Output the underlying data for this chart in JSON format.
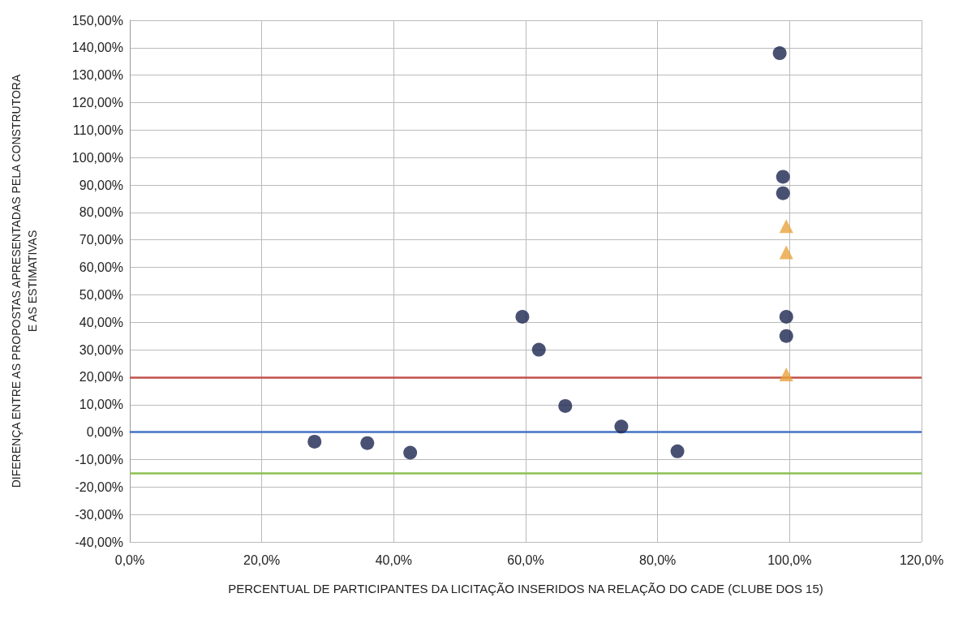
{
  "chart_data": {
    "type": "scatter",
    "xlabel": "PERCENTUAL DE PARTICIPANTES DA LICITAÇÃO INSERIDOS NA RELAÇÃO DO CADE (CLUBE DOS 15)",
    "ylabel": "DIFERENÇA ENTRE AS PROPOSTAS APRESENTADAS PELA CONSTRUTORA\nE AS ESTIMATIVAS",
    "xlim": [
      0,
      120
    ],
    "xticks": [
      {
        "value": 0,
        "label": "0,0%"
      },
      {
        "value": 20,
        "label": "20,0%"
      },
      {
        "value": 40,
        "label": "40,0%"
      },
      {
        "value": 60,
        "label": "60,0%"
      },
      {
        "value": 80,
        "label": "80,0%"
      },
      {
        "value": 100,
        "label": "100,0%"
      },
      {
        "value": 120,
        "label": "120,0%"
      }
    ],
    "ylim": [
      -40,
      150
    ],
    "yticks": [
      {
        "value": -40,
        "label": "-40,00%"
      },
      {
        "value": -30,
        "label": "-30,00%"
      },
      {
        "value": -20,
        "label": "-20,00%"
      },
      {
        "value": -10,
        "label": "-10,00%"
      },
      {
        "value": 0,
        "label": "0,00%"
      },
      {
        "value": 10,
        "label": "10,00%"
      },
      {
        "value": 20,
        "label": "20,00%"
      },
      {
        "value": 30,
        "label": "30,00%"
      },
      {
        "value": 40,
        "label": "40,00%"
      },
      {
        "value": 50,
        "label": "50,00%"
      },
      {
        "value": 60,
        "label": "60,00%"
      },
      {
        "value": 70,
        "label": "70,00%"
      },
      {
        "value": 80,
        "label": "80,00%"
      },
      {
        "value": 90,
        "label": "90,00%"
      },
      {
        "value": 100,
        "label": "100,00%"
      },
      {
        "value": 110,
        "label": "110,00%"
      },
      {
        "value": 120,
        "label": "120,00%"
      },
      {
        "value": 130,
        "label": "130,00%"
      },
      {
        "value": 140,
        "label": "140,00%"
      },
      {
        "value": 150,
        "label": "150,00%"
      }
    ],
    "grid": true,
    "series": [
      {
        "color": "#1c2550",
        "marker": "circle",
        "x": [
          28,
          36,
          42.5,
          59.5,
          62,
          66,
          74.5,
          83,
          98.5,
          99,
          99,
          99.5,
          99.5
        ],
        "values": [
          -3.5,
          -4,
          -7.5,
          42,
          30,
          9.5,
          2,
          -7,
          138,
          93,
          87,
          42,
          35
        ]
      },
      {
        "color": "#e8a33c",
        "marker": "triangle",
        "x": [
          99.5,
          99.5,
          99.5
        ],
        "values": [
          75,
          65.5,
          21
        ]
      }
    ],
    "ref_lines": [
      {
        "axis": "y",
        "value": 20,
        "color": "#c0504d",
        "line_style": "solid"
      },
      {
        "axis": "y",
        "value": 0,
        "color": "#4472c4",
        "line_style": "solid"
      },
      {
        "axis": "y",
        "value": -15,
        "color": "#8cc152",
        "line_style": "solid"
      }
    ]
  }
}
